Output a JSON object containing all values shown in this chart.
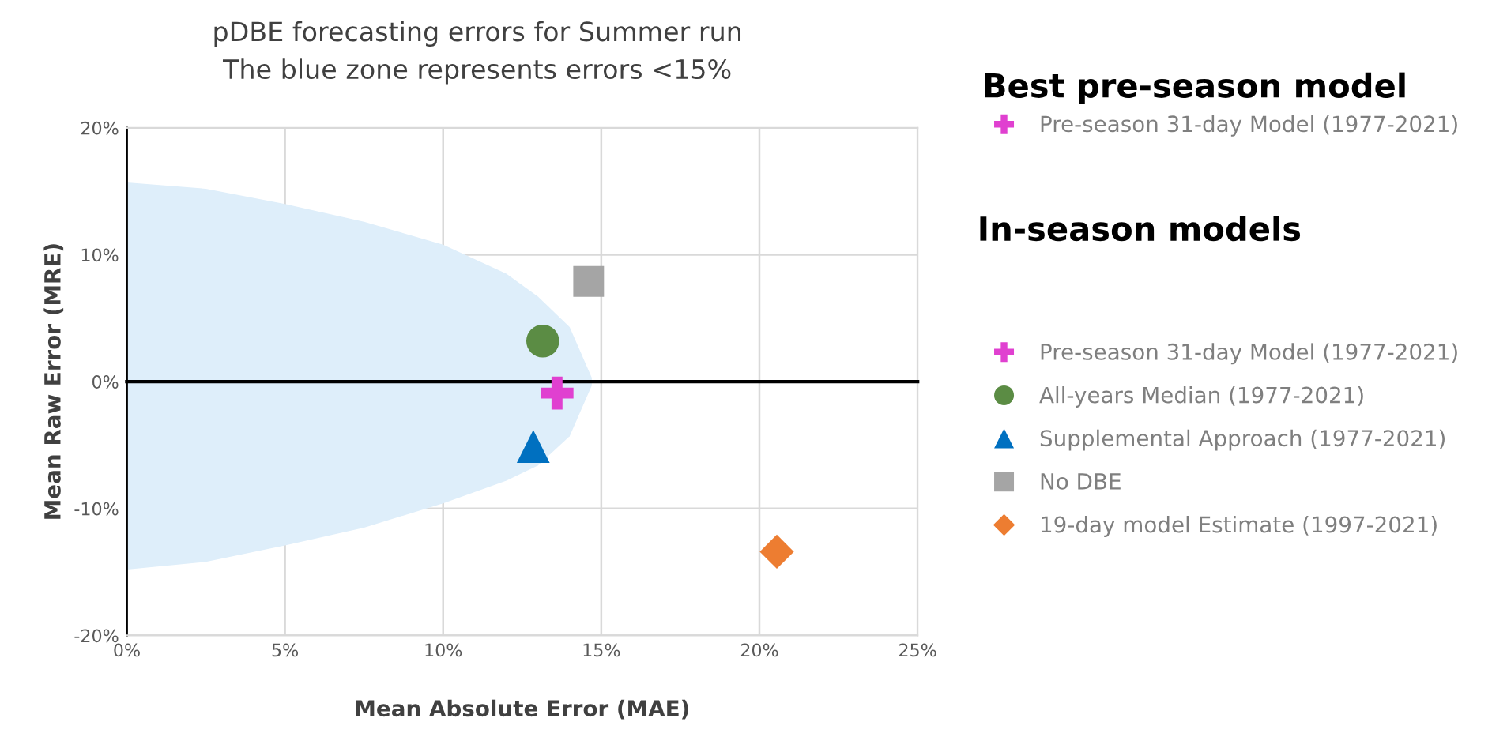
{
  "chart_data": {
    "type": "scatter",
    "title": "pDBE forecasting errors for Summer run",
    "subtitle": "The blue zone represents errors <15%",
    "xlabel": "Mean Absolute Error (MAE)",
    "ylabel": "Mean Raw Error (MRE)",
    "legend_title": "Best pre-season model",
    "annotations": [
      "In-season models"
    ],
    "xlim": [
      0,
      25
    ],
    "xticks": [
      {
        "value": 0,
        "label": "0%"
      },
      {
        "value": 5,
        "label": "5%"
      },
      {
        "value": 10,
        "label": "10%"
      },
      {
        "value": 15,
        "label": "15%"
      },
      {
        "value": 20,
        "label": "20%"
      },
      {
        "value": 25,
        "label": "25%"
      }
    ],
    "ylim": [
      -20,
      20
    ],
    "yticks": [
      {
        "value": -20,
        "label": "-20%"
      },
      {
        "value": -10,
        "label": "-10%"
      },
      {
        "value": 0,
        "label": "0%"
      },
      {
        "value": 10,
        "label": "10%"
      },
      {
        "value": 20,
        "label": "20%"
      }
    ],
    "grid": true,
    "legend": "right",
    "ref_lines": [
      {
        "axis": "y",
        "value": 0,
        "color": "#000000"
      }
    ],
    "series": [
      {
        "name": "Pre-season 31-day Model (1977-2021)",
        "color": "#e040d0",
        "marker": "cross",
        "x": [
          13.6
        ],
        "values": [
          -0.9
        ]
      },
      {
        "name": "All-years Median (1977-2021)",
        "color": "#5b8c44",
        "marker": "circle",
        "x": [
          13.15
        ],
        "values": [
          3.2
        ]
      },
      {
        "name": "Supplemental Approach (1977-2021)",
        "color": "#0070c0",
        "marker": "triangle",
        "x": [
          12.85
        ],
        "values": [
          -5.1
        ]
      },
      {
        "name": "No DBE",
        "color": "#a5a5a5",
        "marker": "square",
        "x": [
          14.6
        ],
        "values": [
          7.9
        ]
      },
      {
        "name": "19-day model Estimate (1997-2021)",
        "color": "#ed7d31",
        "marker": "diamond",
        "x": [
          20.55
        ],
        "values": [
          -13.4
        ]
      },
      {
        "type": "area",
        "color": "#deeefa",
        "x": [
          0,
          2.5,
          5,
          7.5,
          10,
          12,
          13,
          14,
          14.7
        ],
        "values": [
          15.7,
          15.2,
          14.0,
          12.6,
          10.8,
          8.5,
          6.7,
          4.3,
          0.3
        ]
      },
      {
        "type": "area",
        "color": "#deeefa",
        "x": [
          0,
          2.5,
          5,
          7.5,
          10,
          12,
          13,
          14,
          14.7
        ],
        "values": [
          -14.8,
          -14.2,
          -12.9,
          -11.5,
          -9.6,
          -7.8,
          -6.6,
          -4.3,
          -0.3
        ]
      }
    ]
  }
}
